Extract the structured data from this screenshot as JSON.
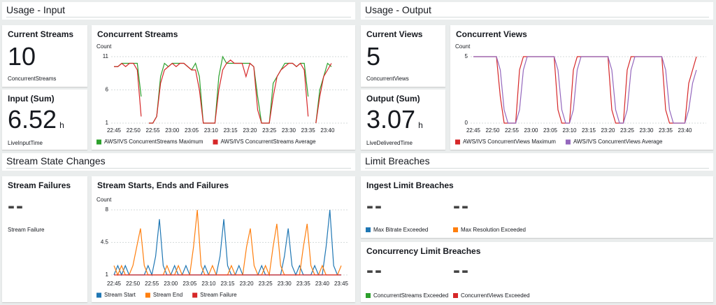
{
  "sections": [
    "Usage - Input",
    "Usage - Output",
    "Stream State Changes",
    "Limit Breaches"
  ],
  "metrics": [
    {
      "title": "Current Streams",
      "value": 10,
      "label": "ConcurrentStreams"
    },
    {
      "title": "Input (Sum)",
      "value": 6.52,
      "unit": "h",
      "label": "LiveInputTime"
    },
    {
      "title": "Current Views",
      "value": 5,
      "label": "ConcurrentViews"
    },
    {
      "title": "Output (Sum)",
      "value": 3.07,
      "unit": "h",
      "label": "LiveDeliveredTime"
    },
    {
      "title": "Stream Failures",
      "value": "--",
      "label": "Stream Failure"
    }
  ],
  "breaches": [
    {
      "title": "Ingest Limit Breaches",
      "items": [
        {
          "value": "--",
          "name": "Max Bitrate Exceeded",
          "color": "#1f77b4"
        },
        {
          "value": "--",
          "name": "Max Resolution Exceeded",
          "color": "#ff7f0e"
        }
      ]
    },
    {
      "title": "Concurrency Limit Breaches",
      "items": [
        {
          "value": "--",
          "name": "ConcurrentStreams Exceeded",
          "color": "#2ca02c"
        },
        {
          "value": "--",
          "name": "ConcurrentViews Exceeded",
          "color": "#d62728"
        }
      ]
    }
  ],
  "chart_data": [
    {
      "type": "line",
      "title": "Concurrent Streams",
      "y_label": "Count",
      "categories": [
        "22:45",
        null,
        null,
        null,
        null,
        "22:50",
        null,
        null,
        null,
        null,
        "22:55",
        null,
        null,
        null,
        null,
        "23:00",
        null,
        null,
        null,
        null,
        "23:05",
        null,
        null,
        null,
        null,
        "23:10",
        null,
        null,
        null,
        null,
        "23:15",
        null,
        null,
        null,
        null,
        "23:20",
        null,
        null,
        null,
        null,
        "23:25",
        null,
        null,
        null,
        null,
        "23:30",
        null,
        null,
        null,
        null,
        "23:35",
        null,
        null,
        null,
        null,
        "23:40",
        null
      ],
      "ylim": [
        1,
        11
      ],
      "yticks": [
        1,
        6,
        11
      ],
      "grid": true,
      "series": [
        {
          "name": "AWS/IVS ConcurrentStreams Maximum",
          "color": "#2ca02c",
          "values": [
            9.5,
            9.5,
            10,
            10,
            10,
            10,
            10,
            5,
            null,
            1,
            1,
            2,
            8,
            10,
            9.5,
            10,
            10,
            10,
            10,
            9.5,
            9,
            10,
            8,
            1,
            1,
            1,
            1,
            8,
            11,
            10,
            10,
            10,
            10,
            10,
            10,
            10,
            9.5,
            5,
            1,
            1,
            1,
            7,
            8,
            9,
            10,
            10,
            10,
            9.5,
            10,
            10,
            5,
            null,
            1,
            6,
            8,
            10,
            9.5
          ]
        },
        {
          "name": "AWS/IVS ConcurrentStreams Average",
          "color": "#d62728",
          "values": [
            9.5,
            9.5,
            10,
            9.5,
            10,
            10,
            9,
            2,
            null,
            1,
            1,
            2,
            7,
            9,
            9.5,
            10,
            9.5,
            10,
            10,
            9.5,
            9,
            9,
            6,
            1,
            1,
            1,
            1,
            6,
            9,
            10,
            10.5,
            10,
            10,
            10,
            8,
            10,
            9.5,
            3,
            1,
            1,
            1,
            5,
            8,
            9,
            9.5,
            10,
            10,
            9.5,
            10,
            9,
            2,
            null,
            1,
            5,
            8,
            9,
            10
          ]
        }
      ]
    },
    {
      "type": "line",
      "title": "Concurrent Views",
      "y_label": "Count",
      "categories": [
        "22:45",
        null,
        null,
        null,
        null,
        "22:50",
        null,
        null,
        null,
        null,
        "22:55",
        null,
        null,
        null,
        null,
        "23:00",
        null,
        null,
        null,
        null,
        "23:05",
        null,
        null,
        null,
        null,
        "23:10",
        null,
        null,
        null,
        null,
        "23:15",
        null,
        null,
        null,
        null,
        "23:20",
        null,
        null,
        null,
        null,
        "23:25",
        null,
        null,
        null,
        null,
        "23:30",
        null,
        null,
        null,
        null,
        "23:35",
        null,
        null,
        null,
        null,
        "23:40",
        null,
        null,
        null
      ],
      "ylim": [
        0,
        5
      ],
      "yticks": [
        0,
        5
      ],
      "grid": true,
      "series": [
        {
          "name": "AWS/IVS ConcurrentViews Maximum",
          "color": "#d62728",
          "values": [
            5,
            5,
            5,
            5,
            5,
            5,
            5,
            2,
            0,
            0,
            0,
            0,
            4,
            5,
            5,
            5,
            5,
            5,
            5,
            5,
            5,
            5,
            1,
            0,
            0,
            0,
            4,
            5,
            5,
            5,
            5,
            5,
            5,
            5,
            5,
            5,
            1,
            0,
            0,
            0,
            4,
            5,
            5,
            5,
            5,
            5,
            5,
            5,
            5,
            5,
            1,
            0,
            0,
            0,
            0,
            0,
            3,
            4,
            5
          ]
        },
        {
          "name": "AWS/IVS ConcurrentViews Average",
          "color": "#9467bd",
          "values": [
            5,
            5,
            5,
            5,
            5,
            5,
            5,
            4,
            1,
            0,
            0,
            0,
            1,
            4,
            5,
            5,
            5,
            5,
            5,
            5,
            5,
            5,
            4,
            1,
            0,
            0,
            1,
            4,
            5,
            5,
            5,
            5,
            5,
            5,
            5,
            5,
            4,
            1,
            0,
            0,
            1,
            4,
            5,
            5,
            5,
            5,
            5,
            5,
            5,
            5,
            4,
            1,
            0,
            0,
            0,
            0,
            1,
            3,
            4
          ]
        }
      ]
    },
    {
      "type": "line",
      "title": "Stream Starts, Ends and Failures",
      "y_label": "Count",
      "categories": [
        "22:45",
        null,
        null,
        null,
        null,
        "22:50",
        null,
        null,
        null,
        null,
        "22:55",
        null,
        null,
        null,
        null,
        "23:00",
        null,
        null,
        null,
        null,
        "23:05",
        null,
        null,
        null,
        null,
        "23:10",
        null,
        null,
        null,
        null,
        "23:15",
        null,
        null,
        null,
        null,
        "23:20",
        null,
        null,
        null,
        null,
        "23:25",
        null,
        null,
        null,
        null,
        "23:30",
        null,
        null,
        null,
        null,
        "23:35",
        null,
        null,
        null,
        null,
        "23:40",
        null,
        null,
        null,
        null,
        "23:45"
      ],
      "ylim": [
        1,
        8
      ],
      "yticks": [
        1,
        4.5,
        8
      ],
      "grid": true,
      "series": [
        {
          "name": "Stream Start",
          "color": "#1f77b4",
          "values": [
            1,
            2,
            1,
            2,
            1,
            1,
            1,
            1,
            1,
            2,
            1,
            3,
            7,
            2,
            1,
            1,
            2,
            1,
            1,
            2,
            1,
            1,
            1,
            1,
            2,
            1,
            1,
            1,
            3,
            7,
            2,
            1,
            1,
            2,
            1,
            1,
            1,
            1,
            1,
            2,
            1,
            1,
            1,
            1,
            1,
            3,
            6,
            2,
            1,
            2,
            1,
            1,
            1,
            2,
            1,
            1,
            4,
            8,
            2,
            1,
            1
          ]
        },
        {
          "name": "Stream End",
          "color": "#ff7f0e",
          "values": [
            2,
            1,
            2,
            1,
            1,
            2,
            4,
            6,
            2,
            1,
            1,
            1,
            1,
            1,
            2,
            1,
            1,
            2,
            1,
            1,
            1,
            4,
            8,
            2,
            1,
            1,
            2,
            1,
            1,
            1,
            1,
            2,
            1,
            1,
            1,
            4,
            6,
            2,
            1,
            1,
            2,
            1,
            4,
            6.5,
            2,
            1,
            1,
            1,
            1,
            1,
            4,
            6.5,
            2,
            1,
            1,
            2,
            1,
            1,
            1,
            1,
            2
          ]
        },
        {
          "name": "Stream Failure",
          "color": "#d62728",
          "values": [
            1,
            1,
            1,
            1,
            1,
            1,
            1,
            1,
            1,
            1,
            1,
            1,
            1,
            1,
            1,
            1,
            1,
            1,
            1,
            1,
            1,
            1,
            1,
            1,
            1,
            1,
            1,
            1,
            1,
            1,
            1,
            1,
            1,
            1,
            1,
            1,
            1,
            1,
            1,
            1,
            1,
            1,
            1,
            1,
            1,
            1,
            1,
            1,
            1,
            1,
            1,
            1,
            1,
            1,
            1,
            1,
            1,
            1,
            1,
            1,
            1
          ]
        }
      ]
    }
  ]
}
